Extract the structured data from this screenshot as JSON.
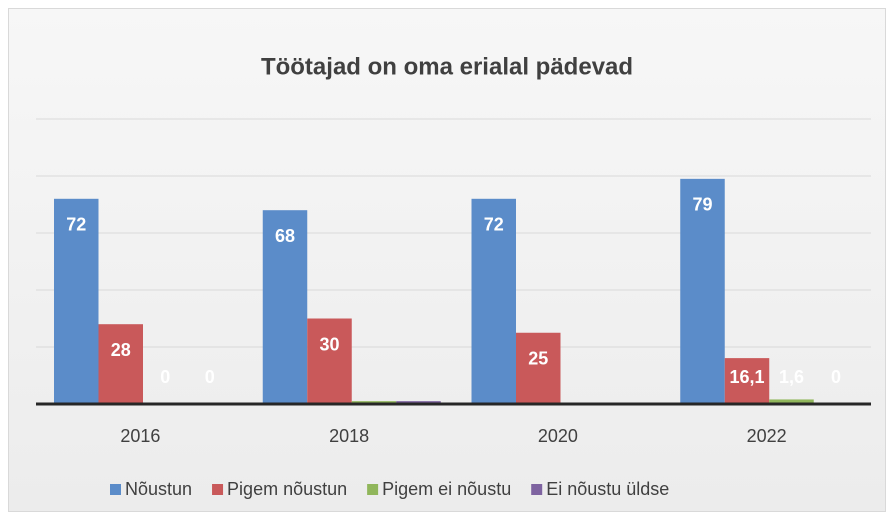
{
  "chart_data": {
    "type": "bar",
    "title": "Töötajad on oma erialal pädevad",
    "categories": [
      "2016",
      "2018",
      "2020",
      "2022"
    ],
    "series": [
      {
        "name": "Nõustun",
        "color": "#5b8cc9",
        "values": [
          72,
          68,
          72,
          79
        ],
        "value_labels": [
          "72",
          "68",
          "72",
          "79"
        ]
      },
      {
        "name": "Pigem nõustun",
        "color": "#c9595a",
        "values": [
          28,
          30,
          25,
          16.1
        ],
        "value_labels": [
          "28",
          "30",
          "25",
          "16,1"
        ]
      },
      {
        "name": "Pigem ei nõustu",
        "color": "#90b65b",
        "values": [
          0,
          1,
          null,
          1.6
        ],
        "value_labels": [
          "0",
          null,
          null,
          "1,6"
        ]
      },
      {
        "name": "Ei nõustu üldse",
        "color": "#7e63a0",
        "values": [
          0,
          1,
          null,
          0
        ],
        "value_labels": [
          "0",
          null,
          null,
          "0"
        ]
      }
    ],
    "ylim": [
      0,
      100
    ],
    "yticks": [
      0,
      20,
      40,
      60,
      80,
      100
    ],
    "grid": true,
    "legend": "bottom"
  }
}
